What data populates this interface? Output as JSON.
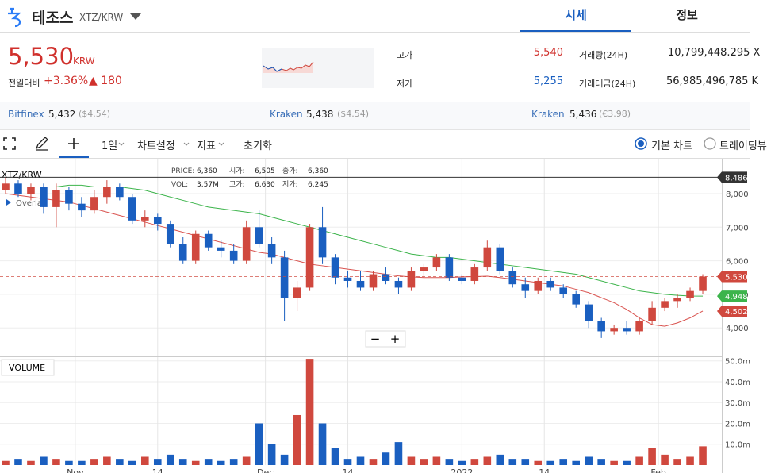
{
  "header": {
    "coin": "테조스",
    "pair": "XTZ/KRW",
    "tabs": [
      "시세",
      "정보"
    ]
  },
  "price": {
    "value": "5,530",
    "unit": "KRW",
    "change_label": "전일대비",
    "change_pct": "+3.36%",
    "change": "▲ 180"
  },
  "stats": [
    {
      "label": "고가",
      "value": "5,540"
    },
    {
      "label": "저가",
      "value": "5,255"
    }
  ],
  "volume_stats": [
    {
      "label": "거래량(24H)",
      "value": "10,799,448.295 X"
    },
    {
      "label": "거래대금(24H)",
      "value": "56,985,496,785 K"
    }
  ],
  "exchanges": [
    {
      "name": "Bitfinex",
      "price": "5,432",
      "fx": "($4.54)"
    },
    {
      "name": "Kraken",
      "price": "5,438",
      "fx": "($4.54)"
    },
    {
      "name": "Kraken",
      "price": "5,436",
      "fx": "(€3.98)"
    }
  ],
  "toolbar": {
    "interval": "1일",
    "settings": "차트설정",
    "indicators": "지표",
    "reset": "초기화",
    "modes": [
      "기본 차트",
      "트레이딩뷰"
    ]
  },
  "zoom": [
    "−",
    "+"
  ],
  "chart_data": {
    "type": "candlestick",
    "symbol": "XTZ/KRW",
    "overlay": "Overlay",
    "volume_title": "VOLUME",
    "tooltip": [
      [
        "PRICE:",
        "6,360"
      ],
      [
        "시가:",
        "6,505"
      ],
      [
        "종가:",
        "6,360"
      ],
      [
        "VOL:",
        "3.57M"
      ],
      [
        "고가:",
        "6,630"
      ],
      [
        "저가:",
        "6,245"
      ]
    ],
    "up_color": "#d0483e",
    "down_color": "#1a5fc0",
    "x": [
      0,
      2,
      4,
      6,
      8,
      10,
      12,
      14,
      16,
      18,
      20,
      22,
      24,
      26,
      28,
      30,
      32,
      34,
      36,
      38,
      40,
      42,
      44,
      46,
      48,
      50,
      52,
      54,
      56,
      58,
      60,
      62,
      64,
      66,
      68,
      70,
      72,
      74,
      76,
      78,
      80,
      82,
      84,
      86,
      88,
      90,
      92,
      94,
      96,
      98,
      100,
      102,
      104,
      106,
      108,
      110
    ],
    "open": [
      8100,
      8300,
      8000,
      8200,
      7600,
      8100,
      7700,
      7500,
      7900,
      8200,
      7900,
      7200,
      7300,
      7100,
      6500,
      6000,
      6800,
      6400,
      6300,
      6000,
      7000,
      6500,
      6100,
      4900,
      5200,
      7000,
      6100,
      5500,
      5400,
      5200,
      5600,
      5400,
      5200,
      5700,
      5800,
      6100,
      5500,
      5400,
      5800,
      6400,
      5700,
      5300,
      5100,
      5400,
      5200,
      5000,
      4700,
      4200,
      3900,
      4000,
      3900,
      4200,
      4600,
      4800,
      4900,
      5100
    ],
    "high": [
      8500,
      8400,
      8300,
      8300,
      8300,
      8200,
      7900,
      8100,
      8400,
      8300,
      8000,
      7500,
      7400,
      7200,
      6700,
      6900,
      6900,
      6600,
      6500,
      7200,
      7500,
      6700,
      6300,
      5400,
      7100,
      7600,
      6200,
      5700,
      5700,
      5700,
      5800,
      5500,
      5800,
      5900,
      6200,
      6200,
      5600,
      5900,
      6600,
      6500,
      5800,
      5500,
      5500,
      5500,
      5300,
      5100,
      4800,
      4300,
      4100,
      4200,
      4300,
      4800,
      4900,
      5000,
      5200,
      5600
    ],
    "low": [
      8000,
      7900,
      7800,
      7400,
      7000,
      7500,
      7300,
      7400,
      7700,
      7800,
      7100,
      7000,
      6900,
      6400,
      5900,
      5900,
      6300,
      6100,
      5900,
      5900,
      6400,
      5900,
      4200,
      4500,
      5100,
      5900,
      5300,
      5200,
      5100,
      5100,
      5300,
      5000,
      5100,
      5500,
      5700,
      5400,
      5300,
      5300,
      5700,
      5600,
      5200,
      4900,
      5000,
      5100,
      4900,
      4600,
      4000,
      3700,
      3800,
      3800,
      3800,
      4100,
      4500,
      4600,
      4800,
      5000
    ],
    "close": [
      8300,
      8000,
      8200,
      7600,
      8100,
      7700,
      7500,
      7900,
      8200,
      7900,
      7200,
      7300,
      7100,
      6500,
      6000,
      6800,
      6400,
      6300,
      6000,
      7000,
      6500,
      6100,
      4900,
      5200,
      7000,
      6100,
      5500,
      5400,
      5200,
      5600,
      5400,
      5200,
      5700,
      5800,
      6100,
      5500,
      5400,
      5800,
      6400,
      5700,
      5300,
      5100,
      5400,
      5200,
      5000,
      4700,
      4200,
      3900,
      4000,
      3900,
      4200,
      4600,
      4800,
      4900,
      5100,
      5530
    ],
    "volume": [
      2,
      3,
      2,
      4,
      3,
      2,
      2,
      3,
      4,
      3,
      2,
      4,
      3,
      5,
      3,
      2,
      3,
      2,
      3,
      4,
      20,
      10,
      5,
      24,
      51,
      20,
      8,
      3,
      4,
      3,
      6,
      11,
      4,
      3,
      4,
      3,
      2,
      3,
      4,
      5,
      3,
      3,
      2,
      2,
      3,
      2,
      4,
      3,
      2,
      2,
      4,
      8,
      5,
      3,
      4,
      9
    ],
    "series": [
      {
        "color": "#d9534f",
        "values": [
          8000,
          7950,
          7900,
          7850,
          7800,
          7750,
          7650,
          7550,
          7450,
          7350,
          7250,
          7150,
          7050,
          6950,
          6850,
          6750,
          6650,
          6550,
          6450,
          6350,
          6250,
          6200,
          6100,
          6000,
          5900,
          5850,
          5800,
          5750,
          5700,
          5650,
          5600,
          5550,
          5520,
          5500,
          5500,
          5500,
          5520,
          5530,
          5540,
          5500,
          5450,
          5400,
          5350,
          5300,
          5250,
          5150,
          5050,
          4900,
          4750,
          4550,
          4300,
          4100,
          4050,
          4150,
          4300,
          4502
        ]
      },
      {
        "color": "#3cb44b",
        "values": [
          null,
          null,
          null,
          null,
          8200,
          8250,
          8250,
          8200,
          8200,
          8200,
          8150,
          8100,
          8000,
          7900,
          7800,
          7700,
          7600,
          7550,
          7500,
          7450,
          7400,
          7300,
          7200,
          7100,
          7000,
          6900,
          6800,
          6700,
          6600,
          6500,
          6400,
          6300,
          6200,
          6150,
          6100,
          6100,
          6050,
          6000,
          5950,
          5900,
          5850,
          5800,
          5750,
          5700,
          5650,
          5600,
          5500,
          5400,
          5300,
          5200,
          5100,
          5050,
          5000,
          4970,
          4950,
          4948
        ]
      }
    ],
    "xlim": [
      -0.875,
      113
    ],
    "xticks": [
      {
        "value": 11,
        "label": "Nov"
      },
      {
        "value": 24,
        "label": "14"
      },
      {
        "value": 41,
        "label": "Dec"
      },
      {
        "value": 54,
        "label": "14"
      },
      {
        "value": 72,
        "label": "2022"
      },
      {
        "value": 85,
        "label": "14"
      },
      {
        "value": 103,
        "label": "Feb"
      }
    ],
    "ylim": [
      3130,
      9040
    ],
    "yticks": [
      {
        "value": 4000,
        "label": "4,000"
      },
      {
        "value": 5000,
        "label": "5,000"
      },
      {
        "value": 6000,
        "label": "6,000"
      },
      {
        "value": 7000,
        "label": "7,000"
      },
      {
        "value": 8000,
        "label": "8,000"
      }
    ],
    "volume_ylim": [
      0,
      51.8
    ],
    "volume_yticks": [
      {
        "value": 10,
        "label": "10.0m"
      },
      {
        "value": 20,
        "label": "20.0m"
      },
      {
        "value": 30,
        "label": "30.0m"
      },
      {
        "value": 40,
        "label": "40.0m"
      },
      {
        "value": 50,
        "label": "50.0m"
      }
    ],
    "price_tags": [
      {
        "value": 8486,
        "label": "8,486",
        "color": "#333333"
      },
      {
        "value": 5530,
        "label": "5,530",
        "color": "#d0483e"
      },
      {
        "value": 4948,
        "label": "4,948",
        "color": "#3cb44b"
      },
      {
        "value": 4502,
        "label": "4,502",
        "color": "#d0483e"
      }
    ]
  }
}
